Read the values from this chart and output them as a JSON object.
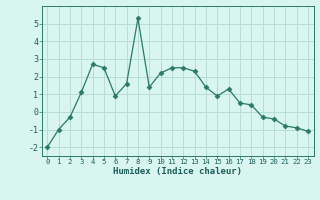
{
  "x": [
    0,
    1,
    2,
    3,
    4,
    5,
    6,
    7,
    8,
    9,
    10,
    11,
    12,
    13,
    14,
    15,
    16,
    17,
    18,
    19,
    20,
    21,
    22,
    23
  ],
  "y": [
    -2.0,
    -1.0,
    -0.3,
    1.1,
    2.7,
    2.5,
    0.9,
    1.6,
    5.3,
    1.4,
    2.2,
    2.5,
    2.5,
    2.3,
    1.4,
    0.9,
    1.3,
    0.5,
    0.4,
    -0.3,
    -0.4,
    -0.8,
    -0.9,
    -1.1
  ],
  "xlabel": "Humidex (Indice chaleur)",
  "line_color": "#2a7a68",
  "marker": "D",
  "marker_size": 2.5,
  "bg_color": "#d8f5f0",
  "grid_color": "#b8ddd6",
  "ylim": [
    -2.5,
    6.0
  ],
  "xlim": [
    -0.5,
    23.5
  ],
  "yticks": [
    -2,
    -1,
    0,
    1,
    2,
    3,
    4,
    5
  ],
  "xticks": [
    0,
    1,
    2,
    3,
    4,
    5,
    6,
    7,
    8,
    9,
    10,
    11,
    12,
    13,
    14,
    15,
    16,
    17,
    18,
    19,
    20,
    21,
    22,
    23
  ],
  "tick_color": "#1a5f5a",
  "xlabel_fontsize": 6.5,
  "ytick_fontsize": 6.0,
  "xtick_fontsize": 5.2
}
